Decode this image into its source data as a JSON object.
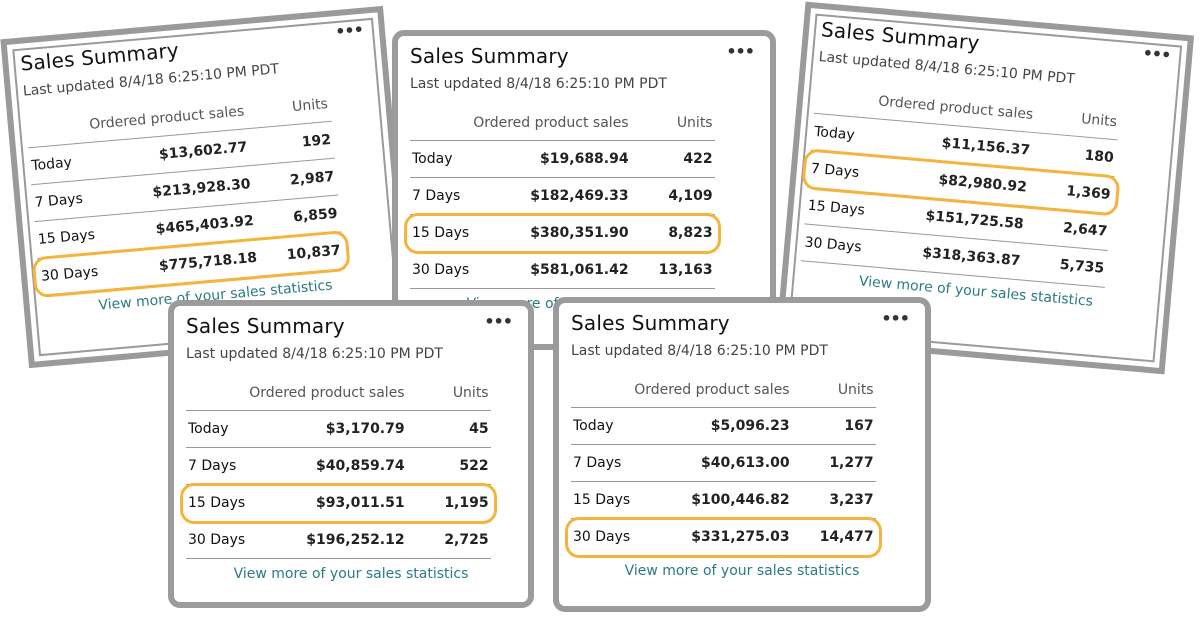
{
  "common": {
    "title": "Sales Summary",
    "last_updated": "Last updated 8/4/18 6:25:10 PM PDT",
    "col_sales": "Ordered product sales",
    "col_units": "Units",
    "link": "View more of your sales statistics",
    "more_icon": "•••"
  },
  "highlight_color": "#f5b43c",
  "cards": [
    {
      "rows": [
        {
          "label": "Today",
          "sales": "$13,602.77",
          "units": "192"
        },
        {
          "label": "7 Days",
          "sales": "$213,928.30",
          "units": "2,987"
        },
        {
          "label": "15 Days",
          "sales": "$465,403.92",
          "units": "6,859"
        },
        {
          "label": "30 Days",
          "sales": "$775,718.18",
          "units": "10,837"
        }
      ],
      "highlighted_row": "30 Days"
    },
    {
      "rows": [
        {
          "label": "Today",
          "sales": "$19,688.94",
          "units": "422"
        },
        {
          "label": "7 Days",
          "sales": "$182,469.33",
          "units": "4,109"
        },
        {
          "label": "15 Days",
          "sales": "$380,351.90",
          "units": "8,823"
        },
        {
          "label": "30 Days",
          "sales": "$581,061.42",
          "units": "13,163"
        }
      ],
      "highlighted_row": "15 Days"
    },
    {
      "rows": [
        {
          "label": "Today",
          "sales": "$11,156.37",
          "units": "180"
        },
        {
          "label": "7 Days",
          "sales": "$82,980.92",
          "units": "1,369"
        },
        {
          "label": "15 Days",
          "sales": "$151,725.58",
          "units": "2,647"
        },
        {
          "label": "30 Days",
          "sales": "$318,363.87",
          "units": "5,735"
        }
      ],
      "highlighted_row": "7 Days"
    },
    {
      "rows": [
        {
          "label": "Today",
          "sales": "$3,170.79",
          "units": "45"
        },
        {
          "label": "7 Days",
          "sales": "$40,859.74",
          "units": "522"
        },
        {
          "label": "15 Days",
          "sales": "$93,011.51",
          "units": "1,195"
        },
        {
          "label": "30 Days",
          "sales": "$196,252.12",
          "units": "2,725"
        }
      ],
      "highlighted_row": "15 Days"
    },
    {
      "rows": [
        {
          "label": "Today",
          "sales": "$5,096.23",
          "units": "167"
        },
        {
          "label": "7 Days",
          "sales": "$40,613.00",
          "units": "1,277"
        },
        {
          "label": "15 Days",
          "sales": "$100,446.82",
          "units": "3,237"
        },
        {
          "label": "30 Days",
          "sales": "$331,275.03",
          "units": "14,477"
        }
      ],
      "highlighted_row": "30 Days"
    }
  ]
}
